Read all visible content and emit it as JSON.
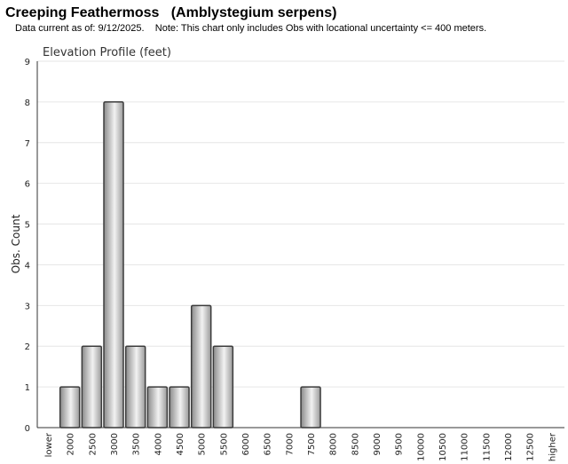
{
  "header": {
    "title": "Creeping Feathermoss   (Amblystegium serpens)",
    "subtitle": "Data current as of: 9/12/2025.    Note: This chart only includes Obs with locational uncertainty <= 400 meters."
  },
  "chart_data": {
    "type": "bar",
    "title": "Elevation Profile (feet)",
    "xlabel": "",
    "ylabel": "Obs. Count",
    "ylim": [
      0,
      9
    ],
    "yticks": [
      0,
      1,
      2,
      3,
      4,
      5,
      6,
      7,
      8,
      9
    ],
    "grid": true,
    "categories": [
      "lower",
      "2000",
      "2500",
      "3000",
      "3500",
      "4000",
      "4500",
      "5000",
      "5500",
      "6000",
      "6500",
      "7000",
      "7500",
      "8000",
      "8500",
      "9000",
      "9500",
      "10000",
      "10500",
      "11000",
      "11500",
      "12000",
      "12500",
      "higher"
    ],
    "values": [
      0,
      1,
      2,
      8,
      2,
      1,
      1,
      3,
      2,
      0,
      0,
      0,
      1,
      0,
      0,
      0,
      0,
      0,
      0,
      0,
      0,
      0,
      0,
      0
    ],
    "colors": {
      "bar_fill_edge": "#8a8a8a",
      "bar_fill_center": "#f2f2f2",
      "bar_stroke": "#3c3c3c",
      "grid": "#e6e6e6",
      "axis": "#333333"
    }
  }
}
